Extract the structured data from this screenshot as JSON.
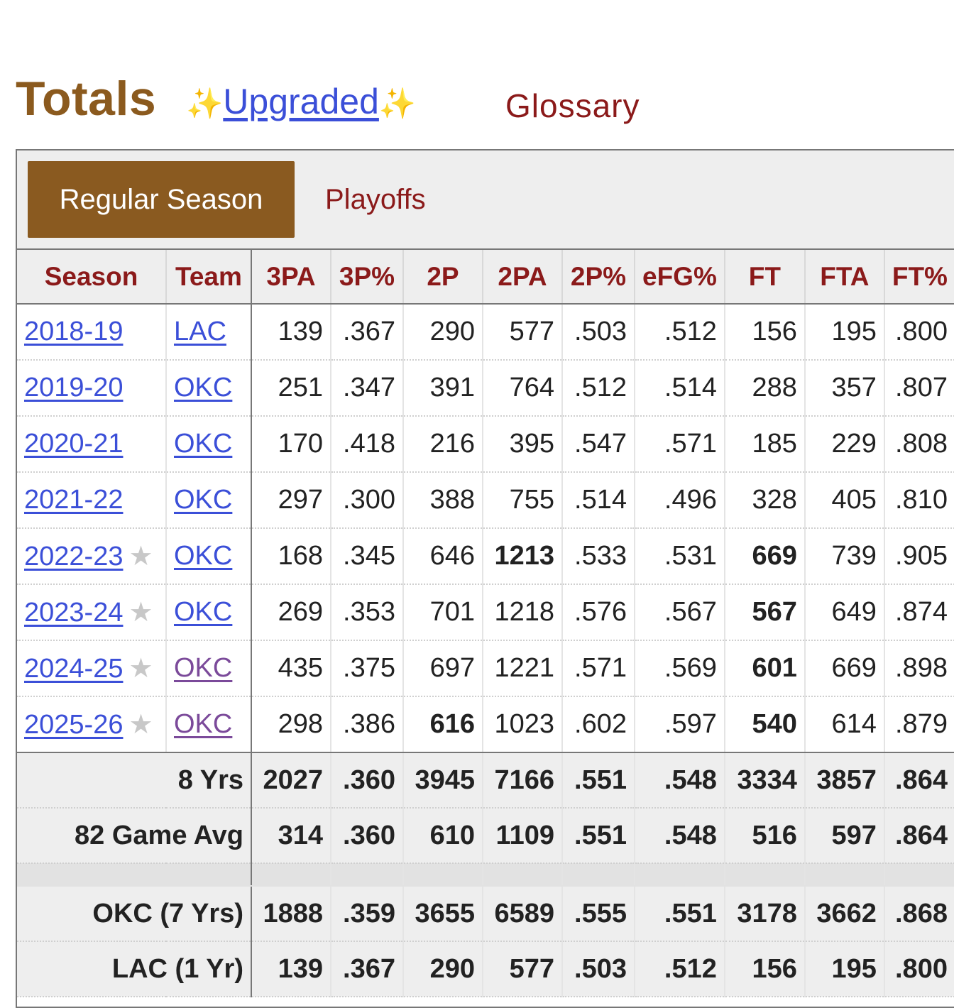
{
  "header": {
    "title": "Totals",
    "sparkle_left": "✨",
    "upgraded_label": "Upgraded",
    "sparkle_right": "✨",
    "glossary_label": "Glossary"
  },
  "tabs": {
    "regular_season": "Regular Season",
    "playoffs": "Playoffs"
  },
  "columns": [
    "Season",
    "Team",
    "3PA",
    "3P%",
    "2P",
    "2PA",
    "2P%",
    "eFG%",
    "FT",
    "FTA",
    "FT%"
  ],
  "rows": [
    {
      "season": "2018-19",
      "star": "",
      "team": "LAC",
      "team_visited": false,
      "values": [
        "139",
        ".367",
        "290",
        "577",
        ".503",
        ".512",
        "156",
        "195",
        ".800"
      ],
      "bold": []
    },
    {
      "season": "2019-20",
      "star": "",
      "team": "OKC",
      "team_visited": false,
      "values": [
        "251",
        ".347",
        "391",
        "764",
        ".512",
        ".514",
        "288",
        "357",
        ".807"
      ],
      "bold": []
    },
    {
      "season": "2020-21",
      "star": "",
      "team": "OKC",
      "team_visited": false,
      "values": [
        "170",
        ".418",
        "216",
        "395",
        ".547",
        ".571",
        "185",
        "229",
        ".808"
      ],
      "bold": []
    },
    {
      "season": "2021-22",
      "star": "",
      "team": "OKC",
      "team_visited": false,
      "values": [
        "297",
        ".300",
        "388",
        "755",
        ".514",
        ".496",
        "328",
        "405",
        ".810"
      ],
      "bold": []
    },
    {
      "season": "2022-23",
      "star": "★",
      "team": "OKC",
      "team_visited": false,
      "values": [
        "168",
        ".345",
        "646",
        "1213",
        ".533",
        ".531",
        "669",
        "739",
        ".905"
      ],
      "bold": [
        3,
        6
      ]
    },
    {
      "season": "2023-24",
      "star": "★",
      "team": "OKC",
      "team_visited": false,
      "values": [
        "269",
        ".353",
        "701",
        "1218",
        ".576",
        ".567",
        "567",
        "649",
        ".874"
      ],
      "bold": [
        6
      ]
    },
    {
      "season": "2024-25",
      "star": "★",
      "team": "OKC",
      "team_visited": true,
      "values": [
        "435",
        ".375",
        "697",
        "1221",
        ".571",
        ".569",
        "601",
        "669",
        ".898"
      ],
      "bold": [
        6
      ]
    },
    {
      "season": "2025-26",
      "star": "★",
      "team": "OKC",
      "team_visited": true,
      "values": [
        "298",
        ".386",
        "616",
        "1023",
        ".602",
        ".597",
        "540",
        "614",
        ".879"
      ],
      "bold": [
        2,
        6
      ]
    }
  ],
  "summary_rows": [
    {
      "label": "8 Yrs",
      "values": [
        "2027",
        ".360",
        "3945",
        "7166",
        ".551",
        ".548",
        "3334",
        "3857",
        ".864"
      ]
    },
    {
      "label": "82 Game Avg",
      "values": [
        "314",
        ".360",
        "610",
        "1109",
        ".551",
        ".548",
        "516",
        "597",
        ".864"
      ]
    }
  ],
  "team_rows": [
    {
      "label": "OKC (7 Yrs)",
      "values": [
        "1888",
        ".359",
        "3655",
        "6589",
        ".555",
        ".551",
        "3178",
        "3662",
        ".868"
      ]
    },
    {
      "label": "LAC (1 Yr)",
      "values": [
        "139",
        ".367",
        "290",
        "577",
        ".503",
        ".512",
        "156",
        "195",
        ".800"
      ]
    }
  ]
}
